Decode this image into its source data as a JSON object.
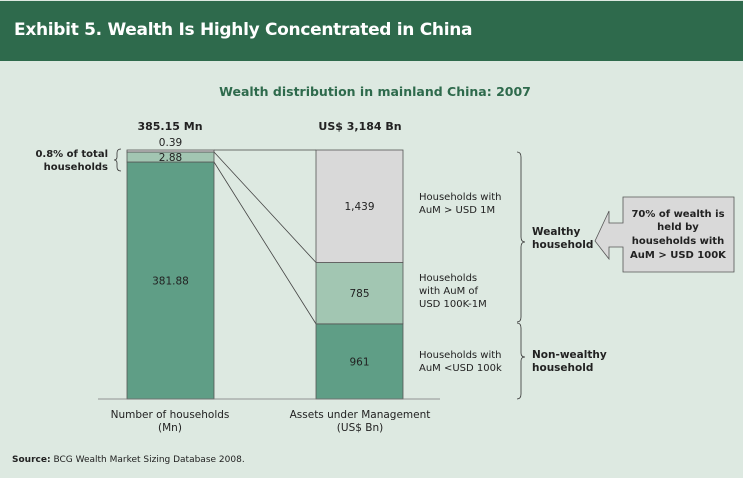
{
  "header": {
    "title": "Exhibit 5. Wealth Is Highly Concentrated in China"
  },
  "source": {
    "label": "Source:",
    "text": "BCG Wealth Market Sizing Database 2008."
  },
  "colors": {
    "header": "#2e6a4c",
    "background": "#dde9e1",
    "dark_green": "#5f9e86",
    "light_green": "#a2c6b2",
    "gray": "#d9d9d9",
    "title_green": "#2e6a4c"
  },
  "chart_data": {
    "type": "bar",
    "stacked": true,
    "title": "Wealth distribution in mainland China: 2007",
    "categories": [
      "Number of households\n(Mn)",
      "Assets under Management\n(US$ Bn)"
    ],
    "category_labels": [
      {
        "line1": "Number of households",
        "line2": "(Mn)"
      },
      {
        "line1": "Assets under Management",
        "line2": "(US$ Bn)"
      }
    ],
    "totals": [
      "385.15 Mn",
      "US$ 3,184 Bn"
    ],
    "bars": [
      {
        "name": "households",
        "segments": [
          {
            "value": 381.88,
            "label": "381.88",
            "color": "#5f9e86"
          },
          {
            "value": 2.88,
            "label": "2.88",
            "color": "#a2c6b2"
          },
          {
            "value": 0.39,
            "label": "0.39",
            "color": "#d9d9d9"
          }
        ]
      },
      {
        "name": "assets",
        "segments": [
          {
            "value": 961,
            "label": "961",
            "color": "#5f9e86"
          },
          {
            "value": 785,
            "label": "785",
            "color": "#a2c6b2"
          },
          {
            "value": 1439,
            "label": "1,439",
            "color": "#d9d9d9"
          }
        ]
      }
    ],
    "segment_labels": [
      {
        "line1": "Households with",
        "line2": "AuM <USD 100k",
        "line3": ""
      },
      {
        "line1": "Households",
        "line2": "with AuM of",
        "line3": "USD 100K-1M"
      },
      {
        "line1": "Households with",
        "line2": "AuM > USD 1M",
        "line3": ""
      }
    ],
    "annotations": {
      "share_of_households": {
        "line1": "0.8% of total",
        "line2": "households"
      },
      "wealthy": {
        "line1": "Wealthy",
        "line2": "household"
      },
      "non_wealthy": {
        "line1": "Non-wealthy",
        "line2": "household"
      },
      "callout": {
        "line1": "70% of wealth is",
        "line2": "held by",
        "line3": "households with",
        "line4": "AuM > USD 100K"
      }
    }
  }
}
